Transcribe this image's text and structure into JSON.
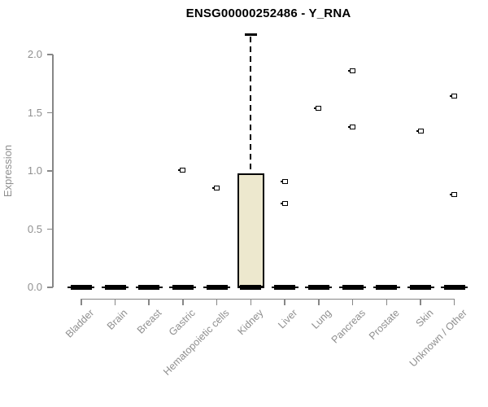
{
  "title": "ENSG00000252486 - Y_RNA",
  "colors": {
    "box_fill": "#EDE8CE",
    "box_border": "#000000",
    "axis_gray": "#878787",
    "label_gray": "#8F8F8F",
    "title_color": "#000000",
    "background": "#FFFFFF"
  },
  "chart_data": {
    "type": "boxplot",
    "title": "ENSG00000252486 - Y_RNA",
    "xlabel": "",
    "ylabel": "Expression",
    "ytick_labels": [
      "0.0",
      "0.5",
      "1.0",
      "1.5",
      "2.0"
    ],
    "ylim": [
      0,
      2.2
    ],
    "grid": false,
    "legend": false,
    "categories": [
      "Bladder",
      "Brain",
      "Breast",
      "Gastric",
      "Hematopoietic cells",
      "Kidney",
      "Liver",
      "Lung",
      "Pancreas",
      "Prostate",
      "Skin",
      "Unknown / Other"
    ],
    "boxes": [
      {
        "category": "Bladder",
        "q1": 0,
        "median": 0,
        "q3": 0,
        "whisker_low": 0,
        "whisker_high": 0,
        "outliers": []
      },
      {
        "category": "Brain",
        "q1": 0,
        "median": 0,
        "q3": 0,
        "whisker_low": 0,
        "whisker_high": 0,
        "outliers": []
      },
      {
        "category": "Breast",
        "q1": 0,
        "median": 0,
        "q3": 0,
        "whisker_low": 0,
        "whisker_high": 0,
        "outliers": []
      },
      {
        "category": "Gastric",
        "q1": 0,
        "median": 0,
        "q3": 0,
        "whisker_low": 0,
        "whisker_high": 0,
        "outliers": [
          1.01
        ]
      },
      {
        "category": "Hematopoietic cells",
        "q1": 0,
        "median": 0,
        "q3": 0,
        "whisker_low": 0,
        "whisker_high": 0,
        "outliers": [
          0.85
        ]
      },
      {
        "category": "Kidney",
        "q1": 0,
        "median": 0,
        "q3": 0.98,
        "whisker_low": 0,
        "whisker_high": 2.17,
        "outliers": []
      },
      {
        "category": "Liver",
        "q1": 0,
        "median": 0,
        "q3": 0,
        "whisker_low": 0,
        "whisker_high": 0,
        "outliers": [
          0.91,
          0.72
        ]
      },
      {
        "category": "Lung",
        "q1": 0,
        "median": 0,
        "q3": 0,
        "whisker_low": 0,
        "whisker_high": 0,
        "outliers": [
          1.54
        ]
      },
      {
        "category": "Pancreas",
        "q1": 0,
        "median": 0,
        "q3": 0,
        "whisker_low": 0,
        "whisker_high": 0,
        "outliers": [
          1.86,
          1.38
        ]
      },
      {
        "category": "Prostate",
        "q1": 0,
        "median": 0,
        "q3": 0,
        "whisker_low": 0,
        "whisker_high": 0,
        "outliers": []
      },
      {
        "category": "Skin",
        "q1": 0,
        "median": 0,
        "q3": 0,
        "whisker_low": 0,
        "whisker_high": 0,
        "outliers": [
          1.34
        ]
      },
      {
        "category": "Unknown / Other",
        "q1": 0,
        "median": 0,
        "q3": 0,
        "whisker_low": 0,
        "whisker_high": 0,
        "outliers": [
          1.64,
          0.8
        ]
      }
    ]
  }
}
